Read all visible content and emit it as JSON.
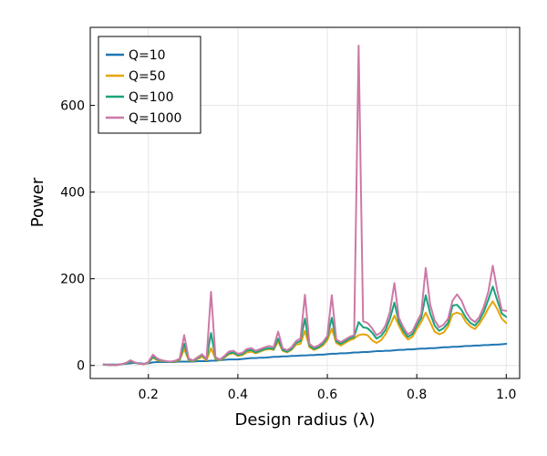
{
  "chart_data": {
    "type": "line",
    "title": "",
    "xlabel": "Design radius (λ)",
    "ylabel": "Power",
    "xlim": [
      0.07,
      1.03
    ],
    "ylim": [
      -30,
      780
    ],
    "xticks": [
      0.2,
      0.4,
      0.6,
      0.8,
      1.0
    ],
    "xtick_labels": [
      "0.2",
      "0.4",
      "0.6",
      "0.8",
      "1.0"
    ],
    "yticks": [
      0,
      200,
      400,
      600
    ],
    "ytick_labels": [
      "0",
      "200",
      "400",
      "600"
    ],
    "grid": true,
    "legend_position": "top-left",
    "x": [
      0.1,
      0.11,
      0.12,
      0.13,
      0.14,
      0.15,
      0.16,
      0.17,
      0.18,
      0.19,
      0.2,
      0.21,
      0.22,
      0.23,
      0.24,
      0.25,
      0.26,
      0.27,
      0.28,
      0.29,
      0.3,
      0.31,
      0.32,
      0.33,
      0.34,
      0.35,
      0.36,
      0.37,
      0.38,
      0.39,
      0.4,
      0.41,
      0.42,
      0.43,
      0.44,
      0.45,
      0.46,
      0.47,
      0.48,
      0.49,
      0.5,
      0.51,
      0.52,
      0.53,
      0.54,
      0.55,
      0.56,
      0.57,
      0.58,
      0.59,
      0.6,
      0.61,
      0.62,
      0.63,
      0.64,
      0.65,
      0.66,
      0.67,
      0.68,
      0.69,
      0.7,
      0.71,
      0.72,
      0.73,
      0.74,
      0.75,
      0.76,
      0.77,
      0.78,
      0.79,
      0.8,
      0.81,
      0.82,
      0.83,
      0.84,
      0.85,
      0.86,
      0.87,
      0.88,
      0.89,
      0.9,
      0.91,
      0.92,
      0.93,
      0.94,
      0.95,
      0.96,
      0.97,
      0.98,
      0.99,
      1.0
    ],
    "series": [
      {
        "name": "Q=10",
        "color": "#1f77b4",
        "values": [
          2,
          2,
          2,
          2,
          3,
          4,
          5,
          6,
          5,
          4,
          5,
          7,
          8,
          8,
          8,
          8,
          8,
          9,
          9,
          9,
          9,
          10,
          10,
          10,
          11,
          11,
          12,
          13,
          14,
          14,
          14,
          15,
          16,
          17,
          17,
          18,
          18,
          19,
          20,
          20,
          21,
          21,
          22,
          22,
          23,
          23,
          24,
          24,
          25,
          25,
          26,
          27,
          27,
          28,
          28,
          29,
          30,
          30,
          31,
          31,
          32,
          33,
          33,
          34,
          34,
          35,
          36,
          36,
          37,
          37,
          38,
          39,
          39,
          40,
          40,
          41,
          42,
          42,
          43,
          43,
          44,
          45,
          45,
          46,
          46,
          47,
          47,
          48,
          48,
          49,
          50
        ]
      },
      {
        "name": "Q=50",
        "color": "#e5a50a",
        "values": [
          2,
          1,
          1,
          1,
          3,
          5,
          9,
          6,
          4,
          3,
          6,
          18,
          12,
          10,
          9,
          8,
          9,
          12,
          38,
          12,
          10,
          15,
          20,
          12,
          40,
          15,
          12,
          18,
          26,
          28,
          22,
          24,
          30,
          32,
          28,
          32,
          36,
          38,
          36,
          55,
          34,
          30,
          36,
          48,
          50,
          80,
          42,
          36,
          40,
          46,
          58,
          85,
          52,
          46,
          52,
          58,
          62,
          70,
          72,
          70,
          58,
          52,
          58,
          72,
          92,
          115,
          92,
          72,
          60,
          66,
          84,
          100,
          122,
          100,
          78,
          72,
          76,
          90,
          118,
          122,
          118,
          100,
          90,
          84,
          96,
          112,
          132,
          148,
          130,
          108,
          98
        ]
      },
      {
        "name": "Q=100",
        "color": "#1aa37a",
        "values": [
          2,
          1,
          1,
          1,
          3,
          5,
          10,
          6,
          4,
          3,
          7,
          20,
          14,
          11,
          9,
          8,
          10,
          14,
          50,
          14,
          11,
          17,
          24,
          14,
          75,
          17,
          13,
          20,
          28,
          30,
          24,
          26,
          34,
          36,
          30,
          34,
          38,
          40,
          38,
          62,
          36,
          32,
          38,
          52,
          56,
          108,
          46,
          38,
          42,
          50,
          64,
          110,
          56,
          50,
          56,
          62,
          66,
          100,
          88,
          86,
          76,
          62,
          68,
          82,
          108,
          145,
          100,
          80,
          66,
          72,
          92,
          110,
          162,
          120,
          92,
          80,
          86,
          98,
          138,
          140,
          128,
          110,
          98,
          92,
          104,
          124,
          152,
          182,
          150,
          120,
          112
        ]
      },
      {
        "name": "Q=1000",
        "color": "#cc79a7",
        "values": [
          3,
          1,
          1,
          1,
          3,
          6,
          12,
          7,
          4,
          3,
          8,
          25,
          16,
          12,
          10,
          9,
          11,
          16,
          70,
          16,
          12,
          19,
          26,
          15,
          170,
          19,
          14,
          22,
          32,
          34,
          27,
          29,
          38,
          40,
          34,
          38,
          42,
          45,
          42,
          78,
          40,
          35,
          42,
          56,
          62,
          163,
          50,
          42,
          46,
          54,
          68,
          162,
          60,
          54,
          60,
          66,
          70,
          738,
          102,
          98,
          86,
          70,
          76,
          92,
          124,
          190,
          110,
          88,
          72,
          78,
          100,
          120,
          225,
          140,
          104,
          88,
          94,
          108,
          150,
          164,
          150,
          124,
          108,
          100,
          112,
          136,
          170,
          230,
          172,
          128,
          126
        ]
      }
    ]
  }
}
